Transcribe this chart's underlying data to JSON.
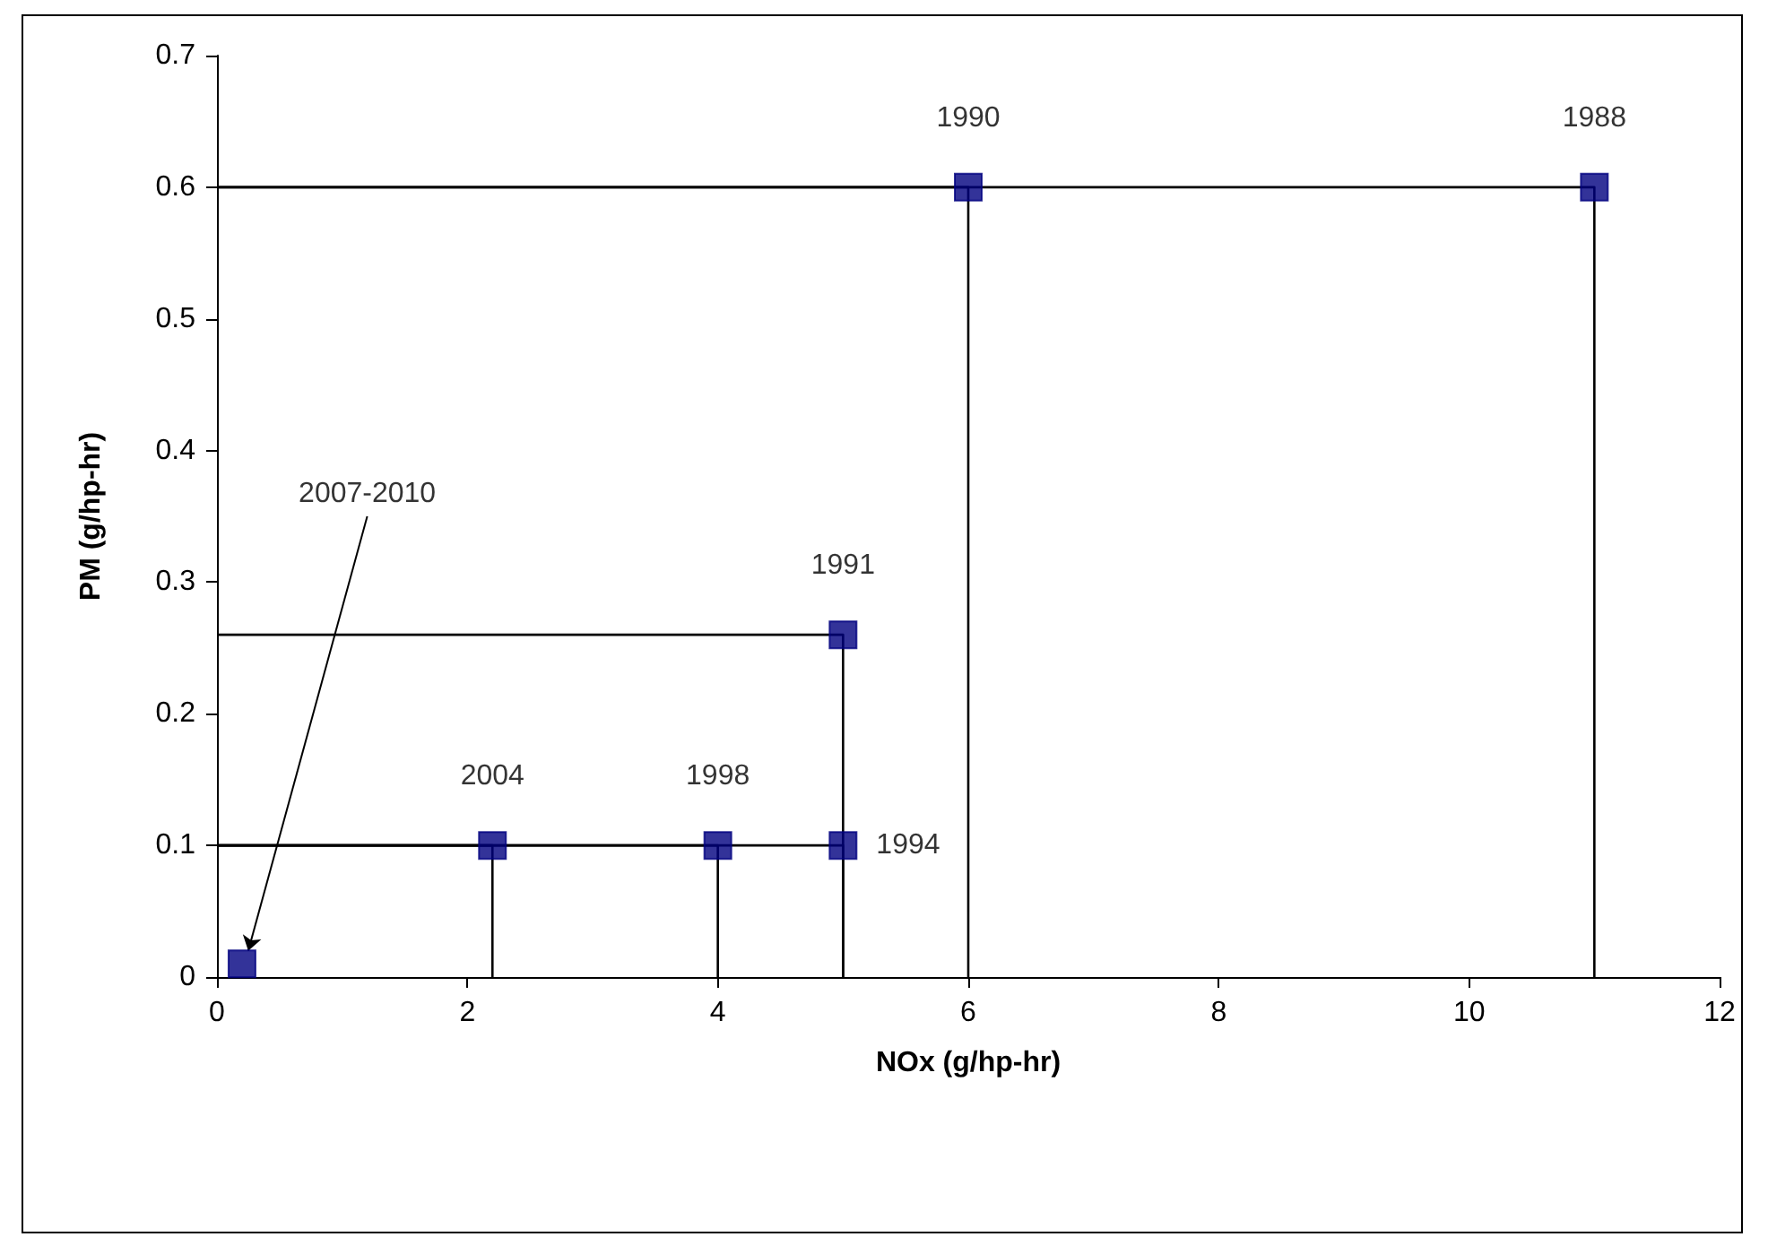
{
  "chart_data": {
    "type": "scatter",
    "xlabel": "NOx (g/hp-hr)",
    "ylabel": "PM (g/hp-hr)",
    "xlim": [
      0,
      12
    ],
    "xticks": [
      0,
      2,
      4,
      6,
      8,
      10,
      12
    ],
    "ylim": [
      0,
      0.7
    ],
    "yticks": [
      0,
      0.1,
      0.2,
      0.3,
      0.4,
      0.5,
      0.6,
      0.7
    ],
    "grid": false,
    "marker": "square",
    "series": [
      {
        "type": "line",
        "color": "#000000",
        "marker": "none",
        "x": [
          0,
          11,
          11
        ],
        "values": [
          0.6,
          0.6,
          0
        ]
      },
      {
        "type": "line",
        "color": "#000000",
        "marker": "none",
        "x": [
          0,
          6,
          6
        ],
        "values": [
          0.6,
          0.6,
          0
        ]
      },
      {
        "type": "line",
        "color": "#000000",
        "marker": "none",
        "x": [
          0,
          5,
          5
        ],
        "values": [
          0.26,
          0.26,
          0
        ]
      },
      {
        "type": "line",
        "color": "#000000",
        "marker": "none",
        "x": [
          0,
          5,
          5
        ],
        "values": [
          0.1,
          0.1,
          0
        ]
      },
      {
        "type": "line",
        "color": "#000000",
        "marker": "none",
        "x": [
          0,
          4,
          4
        ],
        "values": [
          0.1,
          0.1,
          0
        ]
      },
      {
        "type": "line",
        "color": "#000000",
        "marker": "none",
        "x": [
          0,
          2.2,
          2.2
        ],
        "values": [
          0.1,
          0.1,
          0
        ]
      },
      {
        "color": "#000080",
        "x": [
          11,
          6,
          5,
          5,
          4,
          2.2,
          0.2
        ],
        "values": [
          0.6,
          0.6,
          0.26,
          0.1,
          0.1,
          0.1,
          0.01
        ]
      }
    ],
    "annotations": [
      {
        "text": "1988",
        "x": 11,
        "y": 0.6
      },
      {
        "text": "1990",
        "x": 6,
        "y": 0.6
      },
      {
        "text": "1991",
        "x": 5,
        "y": 0.26
      },
      {
        "text": "1994",
        "x": 5,
        "y": 0.1
      },
      {
        "text": "1998",
        "x": 4,
        "y": 0.1
      },
      {
        "text": "2004",
        "x": 2.2,
        "y": 0.1
      },
      {
        "text": "2007-2010",
        "x": 0.2,
        "y": 0.01
      }
    ]
  }
}
